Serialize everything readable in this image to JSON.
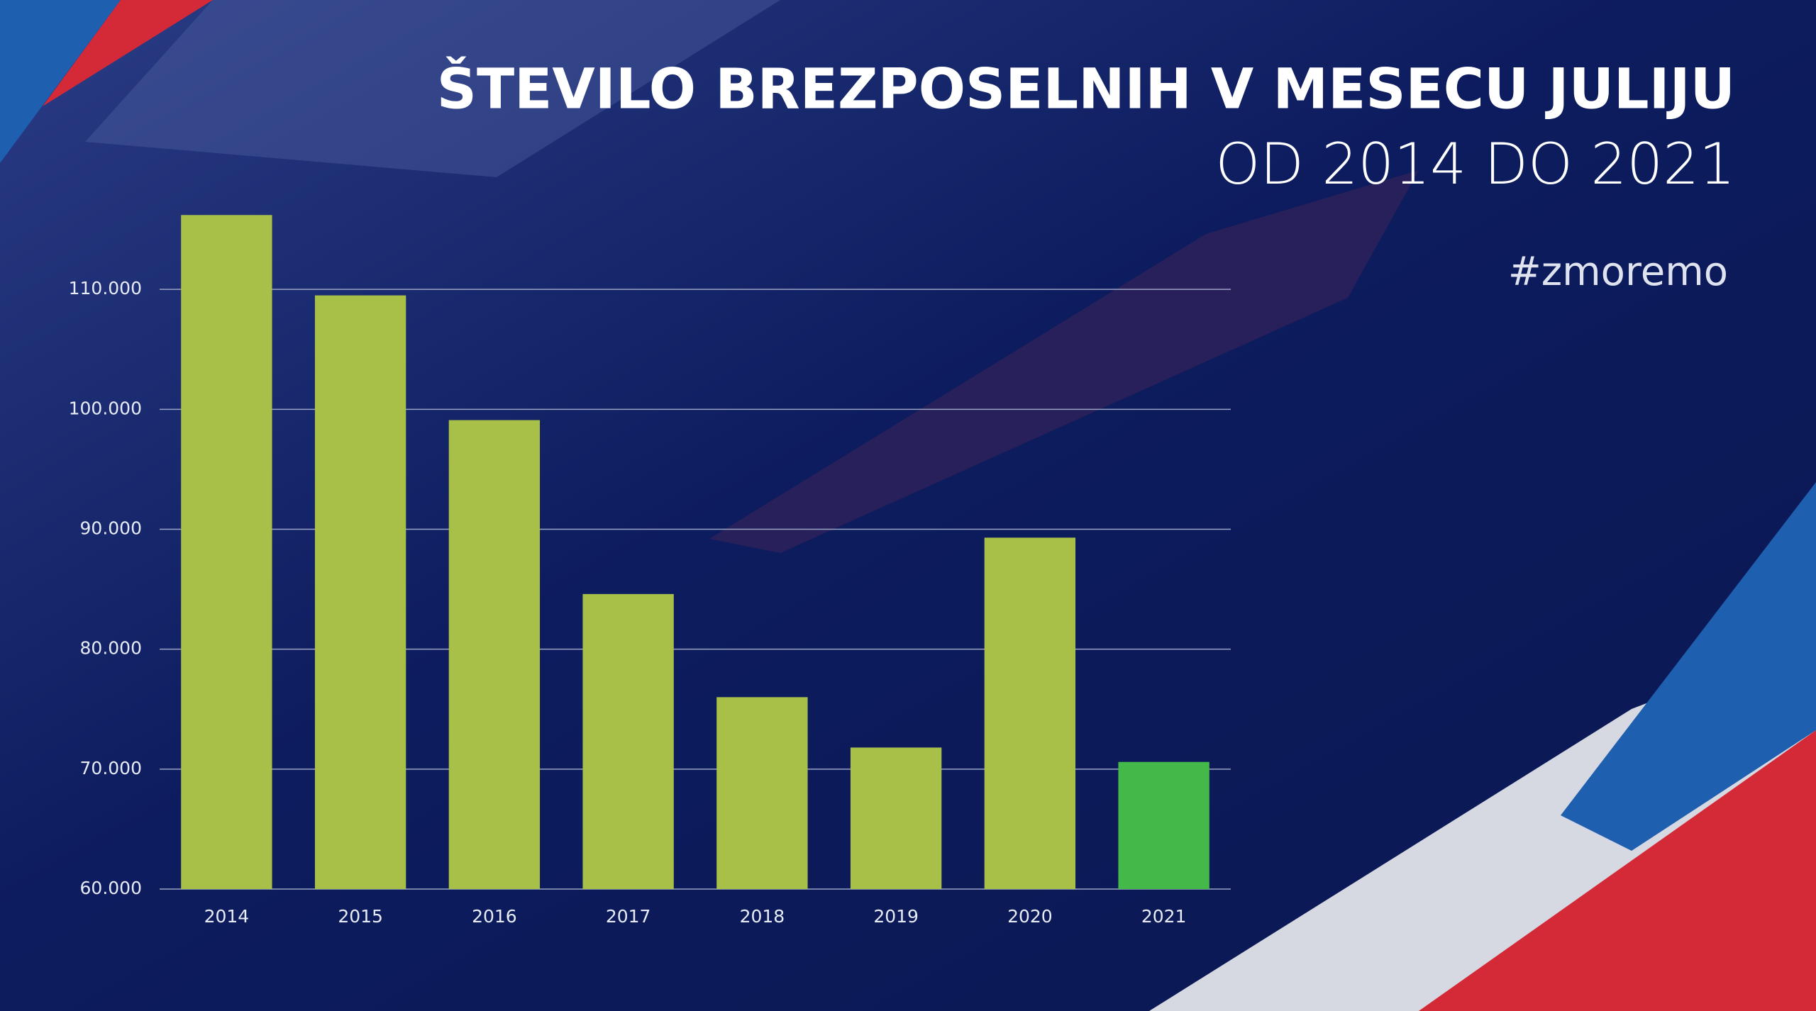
{
  "chart_data": {
    "type": "bar",
    "title": "ŠTEVILO BREZPOSELNIH V MESECU JULIJU",
    "subtitle": "OD 2014 DO 2021",
    "annotation": "#zmoremo",
    "categories": [
      "2014",
      "2015",
      "2016",
      "2017",
      "2018",
      "2019",
      "2020",
      "2021"
    ],
    "values": [
      116200,
      109500,
      99100,
      84600,
      76000,
      71800,
      89300,
      70600
    ],
    "colors": [
      "#a8bf48",
      "#a8bf48",
      "#a8bf48",
      "#a8bf48",
      "#a8bf48",
      "#a8bf48",
      "#a8bf48",
      "#44b848"
    ],
    "ylim": [
      60000,
      120000
    ],
    "yticks": [
      {
        "value": 60000,
        "label": "60.000"
      },
      {
        "value": 70000,
        "label": "70.000"
      },
      {
        "value": 80000,
        "label": "80.000"
      },
      {
        "value": 90000,
        "label": "90.000"
      },
      {
        "value": 100000,
        "label": "100.000"
      },
      {
        "value": 110000,
        "label": "110.000"
      }
    ],
    "grid": true
  }
}
